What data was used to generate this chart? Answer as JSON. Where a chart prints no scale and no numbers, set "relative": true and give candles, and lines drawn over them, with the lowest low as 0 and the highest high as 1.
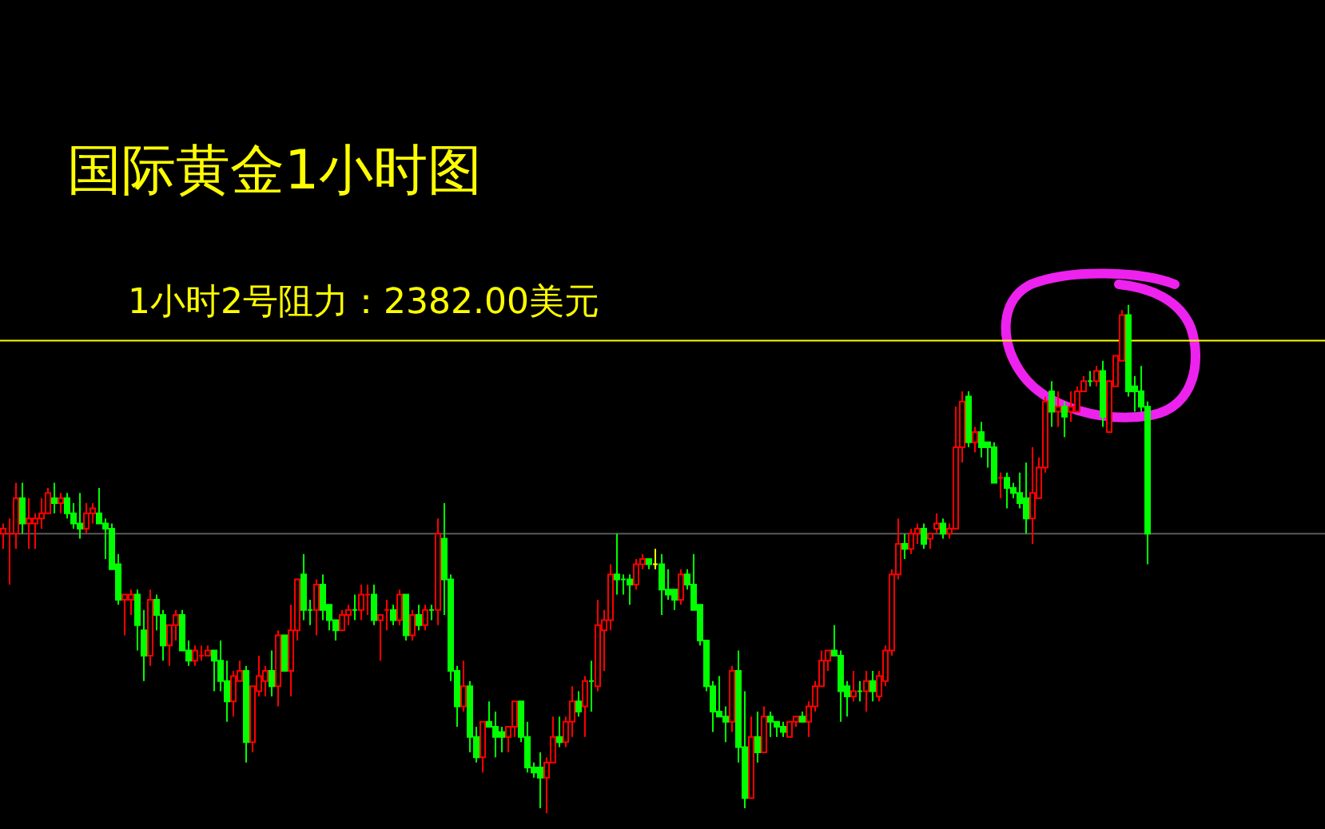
{
  "chart_data": {
    "type": "candlestick",
    "relative": true,
    "title": "国际黄金1小时图",
    "categories": [
      null,
      null,
      null,
      null,
      null,
      null,
      null,
      null,
      null,
      null,
      null,
      null,
      null,
      null,
      null,
      null,
      null,
      null,
      null,
      null,
      null,
      null,
      null,
      null,
      null,
      null,
      null,
      null,
      null,
      null,
      null,
      null,
      null,
      null,
      null,
      null,
      null,
      null,
      null,
      null,
      null,
      null,
      null,
      null,
      null,
      null,
      null,
      null,
      null,
      null,
      null,
      null,
      null,
      null,
      null,
      null,
      null,
      null,
      null,
      null,
      null,
      null,
      null,
      null,
      null,
      null,
      null,
      null,
      null,
      null,
      null,
      null,
      null,
      null,
      null,
      null,
      null,
      null,
      null,
      null,
      null,
      null,
      null,
      null,
      null,
      null,
      null,
      null,
      null,
      null,
      null,
      null,
      null,
      null,
      null,
      null,
      null,
      null,
      null,
      null,
      null,
      null,
      null,
      null,
      null,
      null,
      null,
      null,
      null,
      null,
      null,
      null,
      null,
      null,
      null,
      null,
      null,
      null,
      null,
      null,
      null,
      null,
      null,
      null,
      null,
      null,
      null,
      null,
      null,
      null,
      null,
      null,
      null,
      null,
      null,
      null,
      null,
      null,
      null,
      null,
      null,
      null,
      null,
      null,
      null,
      null,
      null,
      null,
      null,
      null,
      null,
      null,
      null,
      null,
      null,
      null,
      null,
      null,
      null,
      null,
      null,
      null,
      null,
      null,
      null,
      null,
      null,
      null,
      null,
      null,
      null,
      null,
      null,
      null,
      null,
      null,
      null,
      null,
      null,
      null
    ],
    "ohlc": [
      [
        0.55,
        0.57,
        0.52,
        0.56
      ],
      [
        0.55,
        0.58,
        0.45,
        0.55
      ],
      [
        0.55,
        0.65,
        0.52,
        0.62
      ],
      [
        0.62,
        0.65,
        0.55,
        0.57
      ],
      [
        0.57,
        0.62,
        0.52,
        0.58
      ],
      [
        0.57,
        0.59,
        0.52,
        0.58
      ],
      [
        0.58,
        0.62,
        0.56,
        0.59
      ],
      [
        0.59,
        0.64,
        0.59,
        0.63
      ],
      [
        0.62,
        0.65,
        0.59,
        0.61
      ],
      [
        0.61,
        0.63,
        0.59,
        0.62
      ],
      [
        0.62,
        0.63,
        0.58,
        0.59
      ],
      [
        0.59,
        0.61,
        0.56,
        0.57
      ],
      [
        0.57,
        0.63,
        0.54,
        0.56
      ],
      [
        0.56,
        0.61,
        0.55,
        0.59
      ],
      [
        0.59,
        0.61,
        0.57,
        0.6
      ],
      [
        0.59,
        0.64,
        0.57,
        0.57
      ],
      [
        0.57,
        0.58,
        0.5,
        0.56
      ],
      [
        0.56,
        0.57,
        0.48,
        0.48
      ],
      [
        0.49,
        0.51,
        0.41,
        0.42
      ],
      [
        0.42,
        0.43,
        0.35,
        0.43
      ],
      [
        0.42,
        0.44,
        0.39,
        0.43
      ],
      [
        0.43,
        0.44,
        0.32,
        0.37
      ],
      [
        0.36,
        0.4,
        0.26,
        0.31
      ],
      [
        0.31,
        0.44,
        0.29,
        0.42
      ],
      [
        0.42,
        0.43,
        0.36,
        0.39
      ],
      [
        0.39,
        0.4,
        0.3,
        0.33
      ],
      [
        0.33,
        0.37,
        0.29,
        0.37
      ],
      [
        0.37,
        0.4,
        0.34,
        0.39
      ],
      [
        0.39,
        0.4,
        0.32,
        0.32
      ],
      [
        0.32,
        0.34,
        0.29,
        0.3
      ],
      [
        0.3,
        0.33,
        0.29,
        0.32
      ],
      [
        0.31,
        0.33,
        0.3,
        0.31
      ],
      [
        0.31,
        0.33,
        0.31,
        0.32
      ],
      [
        0.32,
        0.32,
        0.24,
        0.3
      ],
      [
        0.3,
        0.34,
        0.24,
        0.26
      ],
      [
        0.26,
        0.3,
        0.18,
        0.22
      ],
      [
        0.22,
        0.28,
        0.19,
        0.27
      ],
      [
        0.26,
        0.3,
        0.26,
        0.28
      ],
      [
        0.28,
        0.29,
        0.1,
        0.14
      ],
      [
        0.14,
        0.25,
        0.12,
        0.25
      ],
      [
        0.24,
        0.31,
        0.23,
        0.27
      ],
      [
        0.26,
        0.29,
        0.23,
        0.28
      ],
      [
        0.28,
        0.32,
        0.23,
        0.25
      ],
      [
        0.25,
        0.36,
        0.21,
        0.35
      ],
      [
        0.35,
        0.35,
        0.28,
        0.28
      ],
      [
        0.28,
        0.41,
        0.23,
        0.36
      ],
      [
        0.36,
        0.46,
        0.34,
        0.46
      ],
      [
        0.47,
        0.51,
        0.38,
        0.4
      ],
      [
        0.4,
        0.42,
        0.37,
        0.4
      ],
      [
        0.4,
        0.46,
        0.35,
        0.45
      ],
      [
        0.45,
        0.47,
        0.38,
        0.4
      ],
      [
        0.41,
        0.41,
        0.36,
        0.38
      ],
      [
        0.38,
        0.38,
        0.34,
        0.36
      ],
      [
        0.36,
        0.4,
        0.36,
        0.39
      ],
      [
        0.39,
        0.41,
        0.37,
        0.4
      ],
      [
        0.4,
        0.43,
        0.38,
        0.4
      ],
      [
        0.4,
        0.45,
        0.38,
        0.43
      ],
      [
        0.43,
        0.45,
        0.39,
        0.43
      ],
      [
        0.43,
        0.45,
        0.37,
        0.38
      ],
      [
        0.38,
        0.39,
        0.3,
        0.39
      ],
      [
        0.4,
        0.42,
        0.36,
        0.4
      ],
      [
        0.4,
        0.41,
        0.37,
        0.38
      ],
      [
        0.38,
        0.44,
        0.37,
        0.43
      ],
      [
        0.43,
        0.43,
        0.34,
        0.35
      ],
      [
        0.35,
        0.4,
        0.34,
        0.39
      ],
      [
        0.39,
        0.41,
        0.36,
        0.37
      ],
      [
        0.37,
        0.41,
        0.36,
        0.4
      ],
      [
        0.4,
        0.41,
        0.38,
        0.4
      ],
      [
        0.4,
        0.58,
        0.37,
        0.55
      ],
      [
        0.54,
        0.61,
        0.39,
        0.46
      ],
      [
        0.46,
        0.47,
        0.26,
        0.28
      ],
      [
        0.28,
        0.29,
        0.17,
        0.21
      ],
      [
        0.21,
        0.3,
        0.2,
        0.25
      ],
      [
        0.25,
        0.26,
        0.12,
        0.15
      ],
      [
        0.15,
        0.17,
        0.1,
        0.11
      ],
      [
        0.11,
        0.18,
        0.08,
        0.18
      ],
      [
        0.18,
        0.22,
        0.17,
        0.17
      ],
      [
        0.17,
        0.2,
        0.11,
        0.15
      ],
      [
        0.16,
        0.17,
        0.12,
        0.15
      ],
      [
        0.15,
        0.17,
        0.12,
        0.17
      ],
      [
        0.17,
        0.22,
        0.15,
        0.22
      ],
      [
        0.22,
        0.22,
        0.14,
        0.15
      ],
      [
        0.15,
        0.18,
        0.08,
        0.09
      ],
      [
        0.09,
        0.1,
        0.07,
        0.08
      ],
      [
        0.09,
        0.12,
        0.01,
        0.07
      ],
      [
        0.07,
        0.11,
        0,
        0.1
      ],
      [
        0.1,
        0.19,
        0.1,
        0.15
      ],
      [
        0.15,
        0.19,
        0.13,
        0.14
      ],
      [
        0.14,
        0.19,
        0.13,
        0.18
      ],
      [
        0.18,
        0.25,
        0.15,
        0.22
      ],
      [
        0.22,
        0.24,
        0.19,
        0.2
      ],
      [
        0.21,
        0.27,
        0.15,
        0.26
      ],
      [
        0.26,
        0.3,
        0.2,
        0.26
      ],
      [
        0.25,
        0.42,
        0.24,
        0.37
      ],
      [
        0.36,
        0.4,
        0.28,
        0.38
      ],
      [
        0.38,
        0.49,
        0.36,
        0.47
      ],
      [
        0.47,
        0.55,
        0.43,
        0.46
      ],
      [
        0.46,
        0.47,
        0.43,
        0.46
      ],
      [
        0.46,
        0.47,
        0.41,
        0.45
      ],
      [
        0.45,
        0.5,
        0.44,
        0.49
      ],
      [
        0.49,
        0.51,
        0.48,
        0.5
      ],
      [
        0.5,
        0.5,
        0.48,
        0.49
      ],
      [
        0.49,
        0.52,
        0.48,
        0.49
      ],
      [
        0.49,
        0.51,
        0.39,
        0.44
      ],
      [
        0.44,
        0.48,
        0.42,
        0.43
      ],
      [
        0.44,
        0.44,
        0.4,
        0.42
      ],
      [
        0.42,
        0.48,
        0.41,
        0.47
      ],
      [
        0.47,
        0.48,
        0.44,
        0.45
      ],
      [
        0.45,
        0.51,
        0.4,
        0.4
      ],
      [
        0.41,
        0.41,
        0.33,
        0.34
      ],
      [
        0.34,
        0.34,
        0.24,
        0.25
      ],
      [
        0.25,
        0.26,
        0.16,
        0.2
      ],
      [
        0.2,
        0.27,
        0.19,
        0.19
      ],
      [
        0.19,
        0.21,
        0.14,
        0.18
      ],
      [
        0.18,
        0.29,
        0.16,
        0.28
      ],
      [
        0.28,
        0.32,
        0.1,
        0.13
      ],
      [
        0.13,
        0.24,
        0.01,
        0.03
      ],
      [
        0.03,
        0.19,
        0.03,
        0.15
      ],
      [
        0.15,
        0.2,
        0.1,
        0.12
      ],
      [
        0.12,
        0.21,
        0.12,
        0.19
      ],
      [
        0.19,
        0.2,
        0.15,
        0.18
      ],
      [
        0.18,
        0.18,
        0.15,
        0.17
      ],
      [
        0.17,
        0.18,
        0.15,
        0.16
      ],
      [
        0.15,
        0.18,
        0.15,
        0.18
      ],
      [
        0.18,
        0.19,
        0.17,
        0.19
      ],
      [
        0.19,
        0.2,
        0.18,
        0.18
      ],
      [
        0.18,
        0.22,
        0.15,
        0.21
      ],
      [
        0.21,
        0.26,
        0.2,
        0.25
      ],
      [
        0.25,
        0.32,
        0.25,
        0.3
      ],
      [
        0.3,
        0.32,
        0.28,
        0.32
      ],
      [
        0.32,
        0.37,
        0.31,
        0.31
      ],
      [
        0.31,
        0.32,
        0.18,
        0.24
      ],
      [
        0.25,
        0.26,
        0.19,
        0.23
      ],
      [
        0.23,
        0.28,
        0.22,
        0.24
      ],
      [
        0.24,
        0.26,
        0.22,
        0.24
      ],
      [
        0.24,
        0.28,
        0.2,
        0.26
      ],
      [
        0.26,
        0.28,
        0.22,
        0.24
      ],
      [
        0.23,
        0.28,
        0.22,
        0.27
      ],
      [
        0.26,
        0.33,
        0.25,
        0.32
      ],
      [
        0.32,
        0.48,
        0.31,
        0.47
      ],
      [
        0.47,
        0.58,
        0.46,
        0.53
      ],
      [
        0.53,
        0.55,
        0.5,
        0.52
      ],
      [
        0.52,
        0.56,
        0.51,
        0.55
      ],
      [
        0.55,
        0.57,
        0.53,
        0.56
      ],
      [
        0.56,
        0.57,
        0.52,
        0.53
      ],
      [
        0.54,
        0.55,
        0.52,
        0.55
      ],
      [
        0.56,
        0.59,
        0.55,
        0.57
      ],
      [
        0.57,
        0.58,
        0.54,
        0.55
      ],
      [
        0.55,
        0.57,
        0.54,
        0.56
      ],
      [
        0.56,
        0.8,
        0.56,
        0.72
      ],
      [
        0.72,
        0.83,
        0.69,
        0.81
      ],
      [
        0.82,
        0.83,
        0.72,
        0.73
      ],
      [
        0.73,
        0.76,
        0.71,
        0.75
      ],
      [
        0.75,
        0.77,
        0.7,
        0.72
      ],
      [
        0.73,
        0.73,
        0.68,
        0.72
      ],
      [
        0.72,
        0.73,
        0.65,
        0.65
      ],
      [
        0.66,
        0.67,
        0.62,
        0.66
      ],
      [
        0.66,
        0.67,
        0.6,
        0.64
      ],
      [
        0.64,
        0.65,
        0.62,
        0.63
      ],
      [
        0.63,
        0.67,
        0.6,
        0.61
      ],
      [
        0.62,
        0.69,
        0.55,
        0.58
      ],
      [
        0.58,
        0.72,
        0.53,
        0.63
      ],
      [
        0.62,
        0.7,
        0.62,
        0.68
      ],
      [
        0.68,
        0.82,
        0.67,
        0.81
      ],
      [
        0.83,
        0.85,
        0.76,
        0.79
      ],
      [
        0.79,
        0.83,
        0.76,
        0.8
      ],
      [
        0.8,
        0.81,
        0.74,
        0.78
      ],
      [
        0.79,
        0.83,
        0.77,
        0.8
      ],
      [
        0.79,
        0.84,
        0.79,
        0.83
      ],
      [
        0.83,
        0.86,
        0.83,
        0.85
      ],
      [
        0.85,
        0.87,
        0.84,
        0.85
      ],
      [
        0.85,
        0.88,
        0.84,
        0.87
      ],
      [
        0.87,
        0.89,
        0.76,
        0.78
      ],
      [
        0.75,
        0.85,
        0.75,
        0.85
      ],
      [
        0.84,
        0.9,
        0.84,
        0.9
      ],
      [
        0.89,
        0.99,
        0.89,
        0.98
      ],
      [
        0.98,
        1,
        0.82,
        0.83
      ],
      [
        0.84,
        0.86,
        0.79,
        0.83
      ],
      [
        0.83,
        0.88,
        0.79,
        0.8
      ],
      [
        0.8,
        0.81,
        0.49,
        0.55
      ]
    ],
    "colors": [
      "#ff0000",
      "#ff0000",
      "#ff0000",
      "#00ff00",
      "#ff0000",
      "#ff0000",
      "#ff0000",
      "#ff0000",
      "#00ff00",
      "#ff0000",
      "#00ff00",
      "#00ff00",
      "#00ff00",
      "#ff0000",
      "#ff0000",
      "#00ff00",
      "#00ff00",
      "#00ff00",
      "#00ff00",
      "#ff0000",
      "#ff0000",
      "#00ff00",
      "#00ff00",
      "#ff0000",
      "#00ff00",
      "#00ff00",
      "#ff0000",
      "#ff0000",
      "#00ff00",
      "#00ff00",
      "#ff0000",
      "#ff0000",
      "#ff0000",
      "#00ff00",
      "#00ff00",
      "#00ff00",
      "#ff0000",
      "#ff0000",
      "#00ff00",
      "#ff0000",
      "#ff0000",
      "#ff0000",
      "#00ff00",
      "#ff0000",
      "#00ff00",
      "#ff0000",
      "#ff0000",
      "#00ff00",
      "#00ff00",
      "#ff0000",
      "#00ff00",
      "#00ff00",
      "#00ff00",
      "#ff0000",
      "#ff0000",
      "#00ff00",
      "#ff0000",
      "#ff0000",
      "#00ff00",
      "#ff0000",
      "#ff0000",
      "#00ff00",
      "#ff0000",
      "#00ff00",
      "#ff0000",
      "#00ff00",
      "#ff0000",
      "#00ff00",
      "#ff0000",
      "#00ff00",
      "#00ff00",
      "#00ff00",
      "#ff0000",
      "#00ff00",
      "#00ff00",
      "#ff0000",
      "#00ff00",
      "#00ff00",
      "#00ff00",
      "#ff0000",
      "#ff0000",
      "#00ff00",
      "#00ff00",
      "#00ff00",
      "#00ff00",
      "#ff0000",
      "#ff0000",
      "#00ff00",
      "#ff0000",
      "#ff0000",
      "#00ff00",
      "#ff0000",
      "#00ff00",
      "#ff0000",
      "#ff0000",
      "#ff0000",
      "#00ff00",
      "#00ff00",
      "#00ff00",
      "#ff0000",
      "#ff0000",
      "#00ff00",
      "#ffff00",
      "#00ff00",
      "#00ff00",
      "#00ff00",
      "#ff0000",
      "#00ff00",
      "#00ff00",
      "#00ff00",
      "#00ff00",
      "#00ff00",
      "#00ff00",
      "#00ff00",
      "#ff0000",
      "#00ff00",
      "#00ff00",
      "#ff0000",
      "#00ff00",
      "#ff0000",
      "#00ff00",
      "#00ff00",
      "#00ff00",
      "#ff0000",
      "#ff0000",
      "#00ff00",
      "#ff0000",
      "#ff0000",
      "#ff0000",
      "#ff0000",
      "#00ff00",
      "#00ff00",
      "#00ff00",
      "#ff0000",
      "#00ff00",
      "#ff0000",
      "#00ff00",
      "#ff0000",
      "#ff0000",
      "#ff0000",
      "#ff0000",
      "#00ff00",
      "#ff0000",
      "#ff0000",
      "#00ff00",
      "#ff0000",
      "#ff0000",
      "#00ff00",
      "#ff0000",
      "#ff0000",
      "#ff0000",
      "#00ff00",
      "#ff0000",
      "#00ff00",
      "#00ff00",
      "#00ff00",
      "#ff0000",
      "#00ff00",
      "#00ff00",
      "#00ff00",
      "#00ff00",
      "#ff0000",
      "#ff0000",
      "#ff0000",
      "#00ff00",
      "#ff0000",
      "#00ff00",
      "#ff0000",
      "#ff0000",
      "#ff0000",
      "#00ff00",
      "#ff0000",
      "#00ff00",
      "#ff0000",
      "#ff0000",
      "#ff0000",
      "#00ff00",
      "#00ff00",
      "#00ff00",
      "#00ff00"
    ],
    "ref_lines": [
      {
        "axis": "y",
        "value": 0.93,
        "label": "1小时2号阻力：2382.00美元",
        "color": "#ffff00"
      },
      {
        "axis": "y",
        "value": 0.55,
        "color": "#5a5a5a"
      }
    ]
  }
}
